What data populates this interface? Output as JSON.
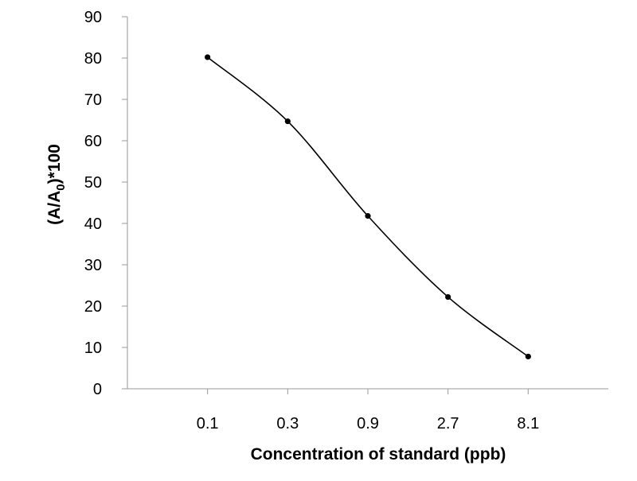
{
  "chart_data": {
    "type": "line",
    "categories": [
      "0.1",
      "0.3",
      "0.9",
      "2.7",
      "8.1"
    ],
    "series": [
      {
        "values": [
          80.2,
          64.7,
          41.8,
          22.2,
          7.8
        ]
      }
    ],
    "xlabel": "Concentration of standard (ppb)",
    "ylabel": {
      "prefix": "(A/A",
      "subscript": "0",
      "suffix": ")*100"
    },
    "ylim": [
      0,
      90
    ],
    "yticks": [
      0,
      10,
      20,
      30,
      40,
      50,
      60,
      70,
      80,
      90
    ],
    "grid": false,
    "smooth": true,
    "markers": true,
    "legend": "none",
    "colors": {
      "line": "#000000",
      "axis": "#9a9a9a"
    }
  }
}
